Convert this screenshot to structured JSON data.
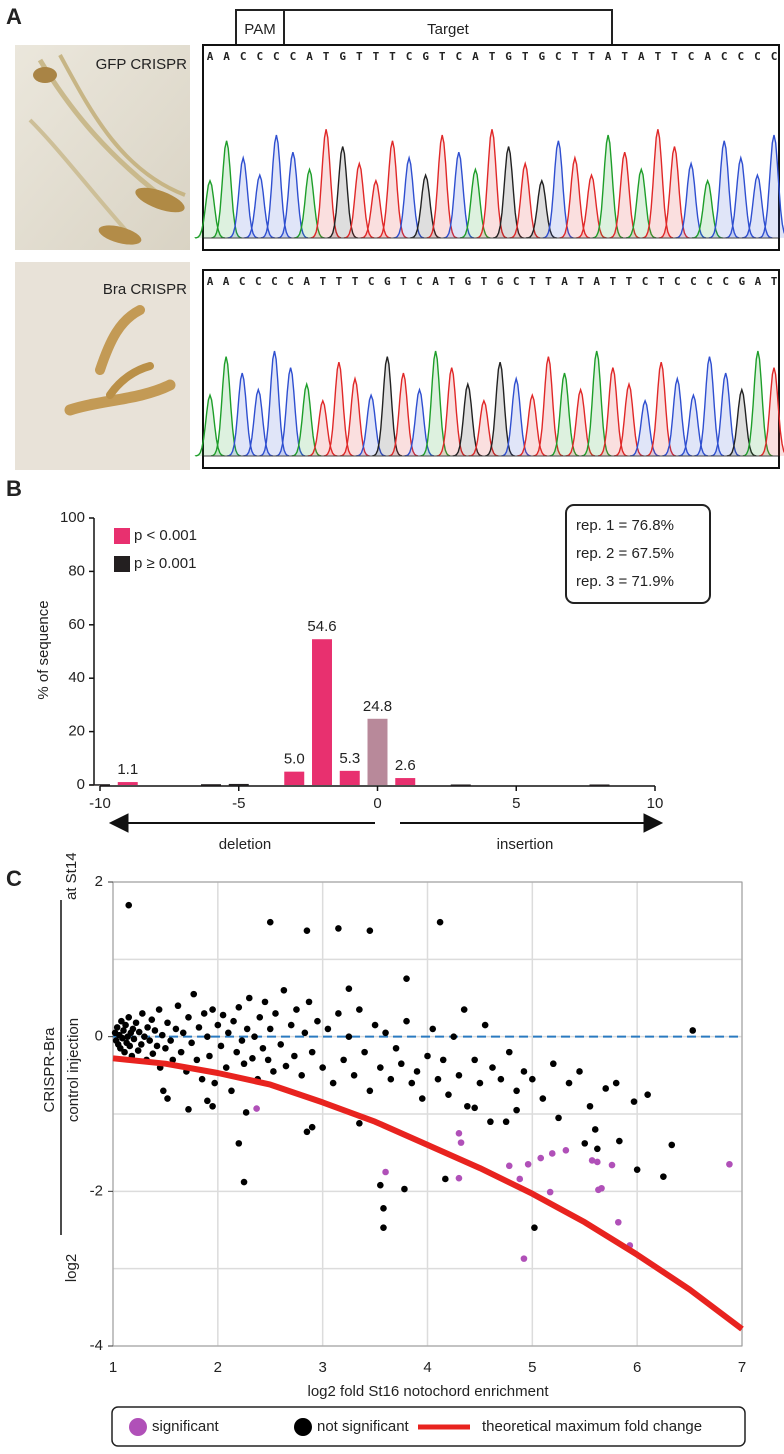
{
  "panel_a": {
    "panel_label": "A",
    "pam": "PAM",
    "target": "Target",
    "base_colors": {
      "A": "#1e9e2a",
      "C": "#2f4fd0",
      "G": "#222222",
      "T": "#e02828"
    },
    "rows": [
      {
        "label": "GFP CRISPR",
        "sequence": [
          "A",
          "A",
          "C",
          "C",
          "C",
          "C",
          "A",
          "T",
          "G",
          "T",
          "T",
          "T",
          "C",
          "G",
          "T",
          "C",
          "A",
          "T",
          "G",
          "T",
          "G",
          "C",
          "T",
          "T",
          "A",
          "T",
          "A",
          "T",
          "T",
          "C",
          "A",
          "C",
          "C",
          "C",
          "C"
        ]
      },
      {
        "label": "Bra CRISPR",
        "sequence": [
          "A",
          "A",
          "C",
          "C",
          "C",
          "C",
          "A",
          "T",
          "T",
          "T",
          "C",
          "G",
          "T",
          "C",
          "A",
          "T",
          "G",
          "T",
          "G",
          "C",
          "T",
          "T",
          "A",
          "T",
          "A",
          "T",
          "T",
          "C",
          "T",
          "C",
          "C",
          "C",
          "C",
          "G",
          "A",
          "T"
        ]
      }
    ]
  },
  "chart_data": [
    {
      "type": "bar",
      "panel_label": "B",
      "ylabel": "% of sequence",
      "xlim": [
        -10,
        10
      ],
      "xticks": [
        -10,
        -5,
        0,
        5,
        10
      ],
      "ylim": [
        0,
        100
      ],
      "yticks": [
        0,
        20,
        40,
        60,
        80,
        100
      ],
      "series": [
        {
          "name": "p < 0.001",
          "color": "#e8306f",
          "x": [
            -9,
            -3,
            -2,
            -1,
            1
          ],
          "values": [
            1.1,
            5.0,
            54.6,
            5.3,
            2.6
          ],
          "value_labels": [
            "1.1",
            "5.0",
            "54.6",
            "5.3",
            "2.6"
          ]
        },
        {
          "name": "p ≥ 0.001",
          "color": "#231f20",
          "x": [
            -10,
            -6,
            -5,
            3,
            8
          ],
          "values": [
            0.3,
            0.3,
            0.4,
            0.2,
            0.2
          ]
        }
      ],
      "reference_bar": {
        "x": 0,
        "value": 24.8,
        "color": "#b8899a"
      },
      "arrows": {
        "left": "deletion",
        "right": "insertion"
      },
      "annotation": [
        "rep. 1 = 76.8%",
        "rep. 2 = 67.5%",
        "rep. 3 = 71.9%"
      ]
    },
    {
      "type": "scatter",
      "panel_label": "C",
      "xlabel": "log2 fold St16 notochord enrichment",
      "ylabel": {
        "prefix": "log2",
        "numerator": "CRISPR-Bra",
        "denominator": "control injection",
        "suffix": "at St14"
      },
      "xlim": [
        1,
        7
      ],
      "xticks": [
        1,
        2,
        3,
        4,
        5,
        6,
        7
      ],
      "ylim": [
        -4,
        2
      ],
      "yticks": [
        -4,
        -2,
        0,
        2
      ],
      "ygrid": [
        -4,
        -3,
        -2,
        -1,
        0,
        1,
        2
      ],
      "grid": true,
      "reference_line": {
        "y": 0,
        "color": "#2a7ac0"
      },
      "series": [
        {
          "name": "significant",
          "color": "#b050b8",
          "x": [
            2.37,
            3.6,
            4.3,
            4.32,
            4.3,
            4.78,
            4.88,
            4.96,
            4.92,
            5.08,
            5.17,
            5.19,
            5.32,
            5.57,
            5.62,
            5.63,
            5.66,
            5.76,
            5.82,
            5.93,
            6.88
          ],
          "values": [
            -0.93,
            -1.75,
            -1.25,
            -1.37,
            -1.83,
            -1.67,
            -1.84,
            -1.65,
            -2.87,
            -1.57,
            -2.01,
            -1.51,
            -1.47,
            -1.6,
            -1.62,
            -1.98,
            -1.96,
            -1.66,
            -2.4,
            -2.7,
            -1.65
          ]
        },
        {
          "name": "not significant",
          "color": "#000000",
          "x": [
            1.15,
            2.5,
            2.85,
            3.15,
            3.45,
            4.12,
            3.8,
            3.25,
            4.35,
            6.53,
            2.2,
            2.25,
            3.55,
            3.58,
            3.58,
            3.78,
            4.17,
            5.02,
            6.25,
            6.33,
            6.0,
            5.97,
            5.7,
            5.25,
            5.5,
            5.62,
            5.6,
            5.83,
            4.45,
            4.6,
            4.75,
            4.85,
            3.35,
            2.9,
            2.85,
            2.27,
            1.9,
            1.95,
            1.72,
            1.48,
            1.52,
            1.02,
            1.03,
            1.04,
            1.05,
            1.06,
            1.07,
            1.08,
            1.09,
            1.1,
            1.11,
            1.12,
            1.13,
            1.14,
            1.15,
            1.16,
            1.17,
            1.18,
            1.19,
            1.2,
            1.22,
            1.24,
            1.25,
            1.27,
            1.28,
            1.3,
            1.32,
            1.33,
            1.35,
            1.37,
            1.38,
            1.4,
            1.42,
            1.44,
            1.45,
            1.47,
            1.5,
            1.52,
            1.55,
            1.57,
            1.6,
            1.62,
            1.65,
            1.67,
            1.7,
            1.72,
            1.75,
            1.77,
            1.8,
            1.82,
            1.85,
            1.87,
            1.9,
            1.92,
            1.95,
            1.97,
            2.0,
            2.03,
            2.05,
            2.08,
            2.1,
            2.13,
            2.15,
            2.18,
            2.2,
            2.23,
            2.25,
            2.28,
            2.3,
            2.33,
            2.35,
            2.38,
            2.4,
            2.43,
            2.45,
            2.48,
            2.5,
            2.53,
            2.55,
            2.6,
            2.63,
            2.65,
            2.7,
            2.73,
            2.75,
            2.8,
            2.83,
            2.87,
            2.9,
            2.95,
            3.0,
            3.05,
            3.1,
            3.15,
            3.2,
            3.25,
            3.3,
            3.35,
            3.4,
            3.45,
            3.5,
            3.55,
            3.6,
            3.65,
            3.7,
            3.75,
            3.8,
            3.85,
            3.9,
            3.95,
            4.0,
            4.05,
            4.1,
            4.15,
            4.2,
            4.25,
            4.3,
            4.38,
            4.45,
            4.5,
            4.55,
            4.62,
            4.7,
            4.78,
            4.85,
            4.92,
            5.0,
            5.1,
            5.2,
            5.35,
            5.45,
            5.55,
            5.8,
            6.1
          ],
          "values": [
            1.7,
            1.48,
            1.37,
            1.4,
            1.37,
            1.48,
            0.75,
            0.62,
            0.35,
            0.08,
            -1.38,
            -1.88,
            -1.92,
            -2.22,
            -2.47,
            -1.97,
            -1.84,
            -2.47,
            -1.81,
            -1.4,
            -1.72,
            -0.84,
            -0.67,
            -1.05,
            -1.38,
            -1.45,
            -1.2,
            -1.35,
            -0.92,
            -1.1,
            -1.1,
            -0.95,
            -1.12,
            -1.17,
            -1.23,
            -0.98,
            -0.83,
            -0.9,
            -0.94,
            -0.7,
            -0.8,
            0.05,
            -0.05,
            0.12,
            -0.1,
            0.02,
            -0.15,
            0.2,
            -0.02,
            0.08,
            -0.2,
            0.15,
            -0.08,
            0.0,
            0.25,
            -0.12,
            0.05,
            -0.25,
            0.1,
            -0.03,
            0.18,
            -0.18,
            0.06,
            -0.1,
            0.3,
            0.0,
            -0.3,
            0.12,
            -0.05,
            0.22,
            -0.22,
            0.08,
            -0.12,
            0.35,
            -0.4,
            0.02,
            -0.15,
            0.18,
            -0.05,
            -0.3,
            0.1,
            0.4,
            -0.2,
            0.05,
            -0.45,
            0.25,
            -0.08,
            0.55,
            -0.3,
            0.12,
            -0.55,
            0.3,
            0.0,
            -0.25,
            0.35,
            -0.6,
            0.15,
            -0.12,
            0.28,
            -0.4,
            0.05,
            -0.7,
            0.2,
            -0.2,
            0.38,
            -0.05,
            -0.35,
            0.1,
            0.5,
            -0.28,
            0.0,
            -0.55,
            0.25,
            -0.15,
            0.45,
            -0.3,
            0.1,
            -0.45,
            0.3,
            -0.1,
            0.6,
            -0.38,
            0.15,
            -0.25,
            0.35,
            -0.5,
            0.05,
            0.45,
            -0.2,
            0.2,
            -0.4,
            0.1,
            -0.6,
            0.3,
            -0.3,
            0.0,
            -0.5,
            0.35,
            -0.2,
            -0.7,
            0.15,
            -0.4,
            0.05,
            -0.55,
            -0.15,
            -0.35,
            0.2,
            -0.6,
            -0.45,
            -0.8,
            -0.25,
            0.1,
            -0.55,
            -0.3,
            -0.75,
            0.0,
            -0.5,
            -0.9,
            -0.3,
            -0.6,
            0.15,
            -0.4,
            -0.55,
            -0.2,
            -0.7,
            -0.45,
            -0.55,
            -0.8,
            -0.35,
            -0.6,
            -0.45,
            -0.9,
            -0.6,
            -0.75
          ]
        },
        {
          "name": "theoretical maximum fold change",
          "color": "#e8231f",
          "type": "line",
          "x": [
            1,
            1.5,
            2,
            2.5,
            3,
            3.5,
            4,
            4.5,
            5,
            5.5,
            6,
            6.5,
            7
          ],
          "values": [
            -0.28,
            -0.35,
            -0.47,
            -0.62,
            -0.85,
            -1.1,
            -1.4,
            -1.7,
            -2.03,
            -2.4,
            -2.82,
            -3.27,
            -3.78
          ]
        }
      ]
    }
  ]
}
